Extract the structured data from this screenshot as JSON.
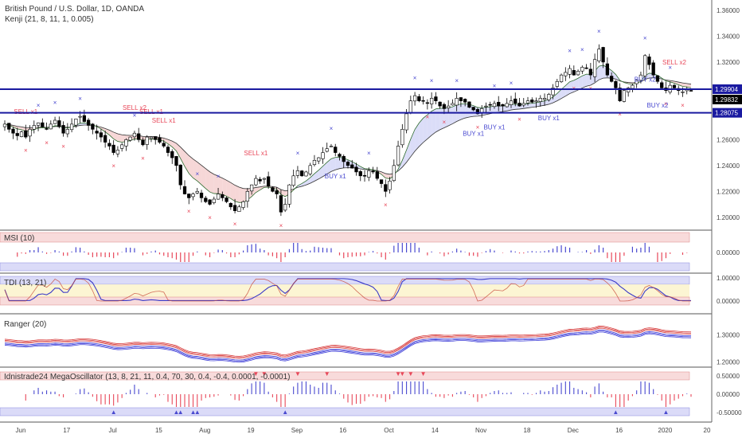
{
  "header": {
    "title": "British Pound / U.S. Dollar, 1D, OANDA",
    "indicator": "Kenji (21, 8, 11, 1, 0.005)"
  },
  "colors": {
    "up_candle": "#ffffff",
    "down_candle": "#000000",
    "blue_line": "#1a1aa0",
    "price_badge": "#000000",
    "signal_red": "#e8485a",
    "signal_blue": "#4a4ad0",
    "band_red": "#f2b8b8",
    "band_blue": "#b8b8f2"
  },
  "chart_data": [
    {
      "type": "candlestick",
      "title": "British Pound / U.S. Dollar, 1D, OANDA",
      "y_ticks": [
        "1.20000",
        "1.22000",
        "1.24000",
        "1.26000",
        "1.28000",
        "1.30000",
        "1.32000",
        "1.34000",
        "1.36000"
      ],
      "ylim": [
        1.19,
        1.368
      ],
      "x_ticks": [
        "Jun",
        "17",
        "Jul",
        "15",
        "Aug",
        "19",
        "Sep",
        "16",
        "Oct",
        "14",
        "Nov",
        "18",
        "Dec",
        "16",
        "2020",
        "20"
      ],
      "price_labels": [
        "1.29904",
        "1.29832",
        "1.28075"
      ],
      "horizontal_levels": [
        1.29904,
        1.28075
      ],
      "closes": [
        1.272,
        1.268,
        1.265,
        1.263,
        1.266,
        1.262,
        1.268,
        1.271,
        1.273,
        1.27,
        1.268,
        1.272,
        1.275,
        1.27,
        1.265,
        1.268,
        1.272,
        1.276,
        1.278,
        1.274,
        1.271,
        1.268,
        1.265,
        1.262,
        1.258,
        1.255,
        1.25,
        1.252,
        1.256,
        1.26,
        1.262,
        1.265,
        1.26,
        1.256,
        1.262,
        1.262,
        1.26,
        1.258,
        1.255,
        1.25,
        1.246,
        1.24,
        1.225,
        1.218,
        1.215,
        1.218,
        1.22,
        1.215,
        1.212,
        1.21,
        1.214,
        1.218,
        1.215,
        1.212,
        1.208,
        1.205,
        1.208,
        1.212,
        1.22,
        1.225,
        1.23,
        1.228,
        1.23,
        1.224,
        1.22,
        1.218,
        1.204,
        1.21,
        1.225,
        1.232,
        1.236,
        1.232,
        1.235,
        1.24,
        1.244,
        1.246,
        1.25,
        1.253,
        1.255,
        1.25,
        1.247,
        1.243,
        1.24,
        1.238,
        1.235,
        1.232,
        1.232,
        1.236,
        1.235,
        1.23,
        1.226,
        1.22,
        1.228,
        1.24,
        1.255,
        1.268,
        1.28,
        1.29,
        1.294,
        1.29,
        1.29,
        1.288,
        1.292,
        1.29,
        1.286,
        1.284,
        1.286,
        1.288,
        1.292,
        1.29,
        1.289,
        1.285,
        1.283,
        1.28,
        1.284,
        1.286,
        1.287,
        1.288,
        1.286,
        1.286,
        1.288,
        1.29,
        1.288,
        1.286,
        1.288,
        1.29,
        1.289,
        1.29,
        1.292,
        1.292,
        1.295,
        1.3,
        1.305,
        1.31,
        1.312,
        1.315,
        1.31,
        1.313,
        1.316,
        1.315,
        1.31,
        1.322,
        1.33,
        1.32,
        1.31,
        1.305,
        1.3,
        1.29,
        1.298,
        1.3,
        1.302,
        1.306,
        1.31,
        1.325,
        1.318,
        1.31,
        1.305,
        1.3,
        1.298,
        1.302,
        1.3,
        1.298,
        1.297,
        1.299,
        1.298
      ]
    },
    {
      "type": "bar",
      "title": "MSI (10)",
      "y_ticks": [
        "0.00000"
      ],
      "ylim": [
        -1.3,
        1.3
      ]
    },
    {
      "type": "line",
      "title": "TDI (13, 21)",
      "y_ticks": [
        "1.00000",
        "0.00000"
      ],
      "ylim": [
        -0.5,
        1.0
      ]
    },
    {
      "type": "line",
      "title": "Ranger (20)",
      "y_ticks": [
        "1.30000",
        "1.20000"
      ],
      "ylim": [
        1.19,
        1.36
      ]
    },
    {
      "type": "bar",
      "title": "Idnistrade24 MegaOscillator (13, 8, 21, 11, 0.4, 70, 30, 0.4, -0.4, 0.0001, -0.0001)",
      "y_ticks": [
        "0.50000",
        "0.00000",
        "-0.50000"
      ],
      "ylim": [
        -0.85,
        0.75
      ]
    }
  ],
  "signals": {
    "sell": [
      "SELL x1",
      "SELL x2",
      "SELL x1",
      "SELL x1",
      "SELL x1",
      "SELL x2"
    ],
    "buy": [
      "BUY x1",
      "BUY x1",
      "BUY x1",
      "BUY x1",
      "BUY x2",
      "BUY x2"
    ]
  }
}
